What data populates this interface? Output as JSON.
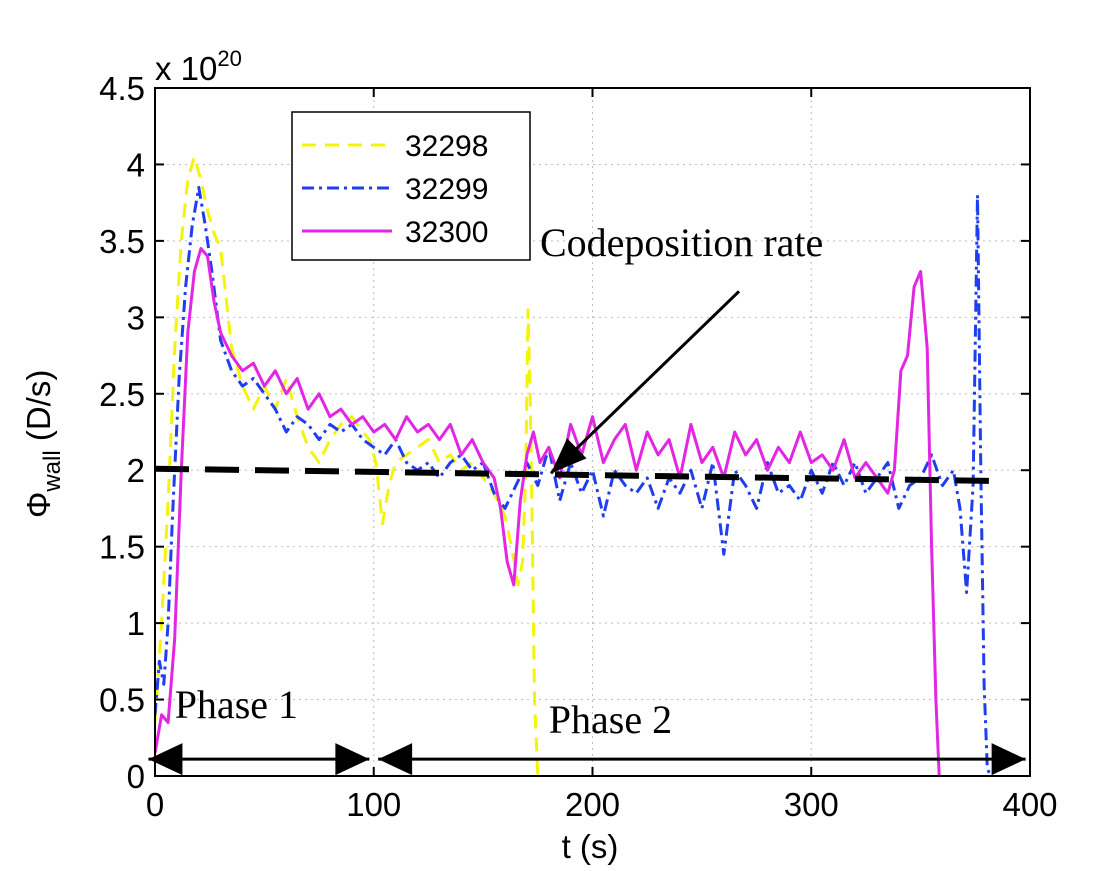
{
  "chart_data": {
    "type": "line",
    "xlabel": "t (s)",
    "ylabel_symbol": "Φ",
    "ylabel_sub": "wall",
    "ylabel_unit": " (D/s)",
    "y_multiplier_prefix": "x 10",
    "y_multiplier_exp": "20",
    "xlim": [
      0,
      400
    ],
    "ylim": [
      0,
      4.5
    ],
    "x_ticks": [
      "0",
      "100",
      "200",
      "300",
      "400"
    ],
    "y_ticks": [
      "0",
      "0.5",
      "1",
      "1.5",
      "2",
      "2.5",
      "3",
      "3.5",
      "4",
      "4.5"
    ],
    "grid": true,
    "legend_position": "top-left",
    "series": [
      {
        "name": "32298",
        "color": "#f4f40a",
        "style": "dashed",
        "x": [
          0,
          3,
          6,
          9,
          12,
          15,
          18,
          21,
          24,
          27,
          30,
          35,
          40,
          45,
          50,
          55,
          60,
          65,
          70,
          75,
          80,
          85,
          90,
          95,
          98,
          101,
          104,
          107,
          110,
          115,
          120,
          125,
          130,
          135,
          140,
          145,
          150,
          155,
          160,
          163,
          166,
          168,
          169.5,
          170.5,
          171.5,
          172.5,
          173.5,
          175
        ],
        "values": [
          0.35,
          1.0,
          1.8,
          2.8,
          3.5,
          3.9,
          4.05,
          3.9,
          3.7,
          3.55,
          3.45,
          2.8,
          2.55,
          2.4,
          2.55,
          2.4,
          2.6,
          2.35,
          2.15,
          2.05,
          2.2,
          2.3,
          2.35,
          2.25,
          2.2,
          2.05,
          1.65,
          1.9,
          2.05,
          2.1,
          2.15,
          2.2,
          2.05,
          2.1,
          2.0,
          2.05,
          1.95,
          1.85,
          1.7,
          1.5,
          1.25,
          1.4,
          2.0,
          3.05,
          2.5,
          1.6,
          0.5,
          0.0
        ]
      },
      {
        "name": "32299",
        "color": "#1f3ef0",
        "style": "dashdot",
        "x": [
          0,
          2,
          4,
          6,
          8,
          11,
          14,
          17,
          20,
          23,
          26,
          30,
          35,
          40,
          45,
          50,
          55,
          60,
          65,
          70,
          75,
          80,
          85,
          90,
          95,
          100,
          105,
          110,
          115,
          120,
          125,
          130,
          135,
          140,
          145,
          150,
          155,
          160,
          165,
          170,
          175,
          180,
          185,
          190,
          195,
          200,
          205,
          210,
          215,
          220,
          225,
          230,
          235,
          240,
          245,
          250,
          255,
          260,
          265,
          270,
          275,
          280,
          285,
          290,
          295,
          300,
          305,
          310,
          315,
          320,
          325,
          330,
          335,
          340,
          345,
          350,
          355,
          360,
          365,
          368,
          371,
          374,
          376,
          377.5,
          379,
          380.5,
          382
        ],
        "values": [
          0.4,
          0.75,
          0.6,
          1.0,
          1.7,
          2.6,
          3.2,
          3.6,
          3.85,
          3.6,
          3.3,
          2.85,
          2.65,
          2.55,
          2.6,
          2.5,
          2.4,
          2.25,
          2.35,
          2.3,
          2.2,
          2.3,
          2.25,
          2.3,
          2.2,
          2.15,
          2.1,
          2.2,
          2.05,
          2.0,
          2.05,
          1.95,
          2.05,
          2.1,
          2.0,
          2.05,
          1.85,
          1.75,
          1.9,
          2.05,
          1.9,
          2.15,
          1.8,
          2.05,
          1.85,
          2.0,
          1.7,
          2.0,
          1.9,
          1.85,
          1.95,
          1.75,
          1.95,
          1.85,
          2.0,
          1.75,
          2.05,
          1.45,
          2.0,
          1.9,
          1.75,
          2.05,
          1.85,
          1.9,
          1.8,
          2.0,
          1.85,
          2.05,
          1.9,
          2.05,
          1.85,
          1.95,
          2.05,
          1.75,
          1.9,
          1.95,
          2.1,
          1.9,
          2.0,
          1.75,
          1.2,
          1.9,
          3.8,
          2.0,
          0.6,
          0.05,
          0.0
        ]
      },
      {
        "name": "32300",
        "color": "#e326e3",
        "style": "solid",
        "x": [
          0,
          3,
          6,
          9,
          12,
          15,
          18,
          21,
          24,
          27,
          30,
          35,
          40,
          45,
          50,
          55,
          60,
          65,
          70,
          75,
          80,
          85,
          90,
          95,
          100,
          105,
          110,
          115,
          120,
          125,
          130,
          135,
          140,
          145,
          150,
          155,
          158,
          161,
          164,
          167,
          170,
          173,
          176,
          180,
          185,
          190,
          195,
          200,
          205,
          210,
          215,
          220,
          225,
          230,
          235,
          240,
          245,
          250,
          255,
          260,
          265,
          270,
          275,
          280,
          285,
          290,
          295,
          300,
          305,
          310,
          315,
          320,
          325,
          330,
          335,
          338,
          341,
          344,
          347,
          350,
          353,
          355,
          357,
          358.5
        ],
        "values": [
          0.15,
          0.4,
          0.35,
          0.9,
          2.0,
          2.9,
          3.3,
          3.45,
          3.4,
          3.1,
          2.9,
          2.75,
          2.65,
          2.7,
          2.55,
          2.65,
          2.5,
          2.6,
          2.4,
          2.5,
          2.35,
          2.4,
          2.3,
          2.35,
          2.25,
          2.3,
          2.2,
          2.35,
          2.25,
          2.3,
          2.2,
          2.3,
          2.1,
          2.2,
          2.05,
          1.95,
          1.75,
          1.4,
          1.25,
          1.8,
          2.1,
          2.25,
          2.05,
          2.15,
          1.95,
          2.3,
          2.1,
          2.35,
          2.05,
          2.2,
          2.3,
          2.0,
          2.25,
          2.1,
          2.2,
          1.95,
          2.3,
          2.05,
          2.15,
          1.95,
          2.25,
          2.1,
          2.2,
          2.0,
          2.15,
          2.05,
          2.25,
          2.05,
          2.1,
          2.0,
          2.2,
          1.95,
          2.05,
          1.95,
          1.85,
          2.0,
          2.65,
          2.75,
          3.2,
          3.3,
          2.8,
          1.5,
          0.5,
          0.0
        ]
      }
    ],
    "reference_line": {
      "style": "dashed",
      "color": "#000000",
      "x": [
        0,
        383
      ],
      "values": [
        2.01,
        1.93
      ]
    },
    "annotations": [
      {
        "text": "Codeposition rate",
        "text_x": 176,
        "text_y": 3.4,
        "arrow_from_x": 267,
        "arrow_from_y": 3.17,
        "arrow_to_x": 181,
        "arrow_to_y": 1.98
      },
      {
        "text": "Phase 1",
        "text_x": 9,
        "text_y": 0.38
      },
      {
        "text": "Phase 2",
        "text_x": 180,
        "text_y": 0.28
      }
    ],
    "phase_arrows": [
      {
        "from_x": -3,
        "to_x": 98,
        "y": 0.11
      },
      {
        "from_x": 102,
        "to_x": 398,
        "y": 0.11
      }
    ]
  }
}
